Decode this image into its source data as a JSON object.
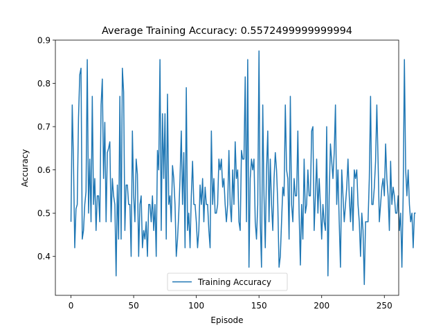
{
  "chart_data": {
    "type": "line",
    "title": "Average Training Accuracy: 0.5572499999999994",
    "xlabel": "Episode",
    "ylabel": "Accuracy",
    "xlim": [
      -12.45,
      261.45
    ],
    "ylim": [
      0.31,
      0.9
    ],
    "xticks": [
      0,
      50,
      100,
      150,
      200,
      250
    ],
    "xtick_labels": [
      "0",
      "50",
      "100",
      "150",
      "200",
      "250"
    ],
    "yticks": [
      0.4,
      0.5,
      0.6,
      0.7,
      0.8,
      0.9
    ],
    "ytick_labels": [
      "0.4",
      "0.5",
      "0.6",
      "0.7",
      "0.8",
      "0.9"
    ],
    "grid": false,
    "legend_position": "lower center",
    "line_color": "#1f77b4",
    "series": [
      {
        "name": "Training Accuracy",
        "x_start": 0,
        "x_step": 1,
        "values": [
          0.48,
          0.75,
          0.62,
          0.42,
          0.51,
          0.52,
          0.72,
          0.82,
          0.835,
          0.44,
          0.46,
          0.52,
          0.55,
          0.855,
          0.5,
          0.625,
          0.48,
          0.77,
          0.52,
          0.58,
          0.46,
          0.54,
          0.54,
          0.48,
          0.75,
          0.81,
          0.58,
          0.71,
          0.48,
          0.64,
          0.65,
          0.665,
          0.48,
          0.58,
          0.54,
          0.52,
          0.355,
          0.565,
          0.44,
          0.77,
          0.44,
          0.835,
          0.78,
          0.46,
          0.565,
          0.565,
          0.52,
          0.52,
          0.4,
          0.69,
          0.54,
          0.48,
          0.625,
          0.59,
          0.4,
          0.52,
          0.54,
          0.42,
          0.46,
          0.44,
          0.48,
          0.4,
          0.52,
          0.52,
          0.48,
          0.54,
          0.46,
          0.52,
          0.4,
          0.645,
          0.6,
          0.855,
          0.46,
          0.73,
          0.58,
          0.73,
          0.44,
          0.775,
          0.52,
          0.54,
          0.48,
          0.61,
          0.58,
          0.52,
          0.4,
          0.44,
          0.5,
          0.58,
          0.69,
          0.52,
          0.64,
          0.42,
          0.79,
          0.46,
          0.5,
          0.42,
          0.54,
          0.62,
          0.52,
          0.52,
          0.48,
          0.42,
          0.46,
          0.565,
          0.52,
          0.58,
          0.48,
          0.56,
          0.52,
          0.52,
          0.46,
          0.42,
          0.69,
          0.52,
          0.58,
          0.5,
          0.5,
          0.52,
          0.625,
          0.6,
          0.625,
          0.56,
          0.58,
          0.52,
          0.48,
          0.52,
          0.645,
          0.52,
          0.48,
          0.6,
          0.52,
          0.665,
          0.58,
          0.6,
          0.48,
          0.46,
          0.645,
          0.625,
          0.625,
          0.815,
          0.48,
          0.855,
          0.375,
          0.58,
          0.625,
          0.6,
          0.625,
          0.48,
          0.44,
          0.52,
          0.875,
          0.48,
          0.375,
          0.75,
          0.54,
          0.42,
          0.6,
          0.69,
          0.48,
          0.625,
          0.52,
          0.46,
          0.58,
          0.64,
          0.6,
          0.52,
          0.375,
          0.4,
          0.48,
          0.56,
          0.54,
          0.75,
          0.6,
          0.58,
          0.44,
          0.77,
          0.52,
          0.48,
          0.58,
          0.54,
          0.54,
          0.69,
          0.5,
          0.38,
          0.52,
          0.44,
          0.625,
          0.5,
          0.52,
          0.6,
          0.54,
          0.54,
          0.69,
          0.7,
          0.46,
          0.54,
          0.625,
          0.5,
          0.58,
          0.52,
          0.44,
          0.52,
          0.48,
          0.46,
          0.7,
          0.355,
          0.54,
          0.66,
          0.62,
          0.58,
          0.64,
          0.75,
          0.52,
          0.6,
          0.48,
          0.375,
          0.6,
          0.54,
          0.48,
          0.52,
          0.56,
          0.625,
          0.54,
          0.48,
          0.56,
          0.46,
          0.6,
          0.58,
          0.6,
          0.52,
          0.48,
          0.4,
          0.5,
          0.46,
          0.335,
          0.48,
          0.48,
          0.48,
          0.58,
          0.77,
          0.52,
          0.52,
          0.56,
          0.62,
          0.75,
          0.62,
          0.48,
          0.52,
          0.56,
          0.58,
          0.54,
          0.66,
          0.58,
          0.54,
          0.46,
          0.62,
          0.52,
          0.56,
          0.54,
          0.5,
          0.5,
          0.54,
          0.46,
          0.5,
          0.375,
          0.54,
          0.855,
          0.6,
          0.54,
          0.6,
          0.52,
          0.48,
          0.5,
          0.42,
          0.5,
          0.5
        ]
      }
    ]
  }
}
